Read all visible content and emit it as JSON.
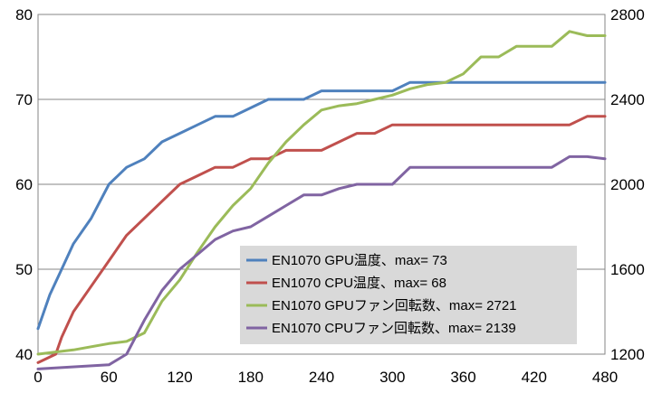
{
  "chart_data": {
    "type": "line",
    "title": "",
    "xlabel": "",
    "ylabel": "",
    "y2label": "",
    "xlim": [
      0,
      480
    ],
    "ylim": [
      40,
      80
    ],
    "y2lim": [
      1200,
      2800
    ],
    "xticks": [
      "0",
      "60",
      "120",
      "180",
      "240",
      "300",
      "360",
      "420",
      "480"
    ],
    "yticks": [
      "40",
      "50",
      "60",
      "70",
      "80"
    ],
    "y2ticks": [
      "1200",
      "1600",
      "2000",
      "2400",
      "2800"
    ],
    "grid": "horizontal",
    "legend_position": "bottom-right",
    "legend_background": "#d9d9d9",
    "series": [
      {
        "name": "EN1070 GPU温度、max= 73",
        "axis": "left",
        "color": "#4f81bd",
        "x": [
          0,
          5,
          10,
          20,
          30,
          45,
          60,
          75,
          90,
          105,
          120,
          135,
          150,
          165,
          180,
          195,
          210,
          225,
          240,
          255,
          270,
          285,
          300,
          315,
          330,
          345,
          360,
          375,
          390,
          405,
          420,
          435,
          450,
          465,
          480
        ],
        "y": [
          43,
          45,
          47,
          50,
          53,
          56,
          60,
          62,
          63,
          65,
          66,
          67,
          68,
          68,
          69,
          70,
          70,
          70,
          71,
          71,
          71,
          71,
          71,
          72,
          72,
          72,
          72,
          72,
          72,
          72,
          72,
          72,
          72,
          72,
          72
        ]
      },
      {
        "name": "EN1070 CPU温度、max= 68",
        "axis": "left",
        "color": "#c0504d",
        "x": [
          0,
          15,
          20,
          30,
          45,
          60,
          75,
          90,
          105,
          120,
          135,
          150,
          165,
          180,
          195,
          210,
          225,
          240,
          255,
          270,
          285,
          300,
          315,
          330,
          345,
          360,
          375,
          390,
          405,
          420,
          435,
          450,
          465,
          480
        ],
        "y": [
          39,
          40,
          42,
          45,
          48,
          51,
          54,
          56,
          58,
          60,
          61,
          62,
          62,
          63,
          63,
          64,
          64,
          64,
          65,
          66,
          66,
          67,
          67,
          67,
          67,
          67,
          67,
          67,
          67,
          67,
          67,
          67,
          68,
          68
        ]
      },
      {
        "name": "EN1070 GPUファン回転数、max= 2721",
        "axis": "right",
        "color": "#9bbb59",
        "x": [
          0,
          30,
          60,
          75,
          90,
          105,
          120,
          135,
          150,
          165,
          180,
          195,
          210,
          225,
          240,
          255,
          270,
          285,
          300,
          315,
          330,
          345,
          360,
          375,
          390,
          405,
          420,
          435,
          450,
          465,
          480
        ],
        "y": [
          1200,
          1220,
          1250,
          1260,
          1300,
          1450,
          1550,
          1680,
          1800,
          1900,
          1980,
          2100,
          2200,
          2280,
          2350,
          2370,
          2380,
          2400,
          2420,
          2450,
          2470,
          2480,
          2520,
          2600,
          2600,
          2650,
          2650,
          2650,
          2720,
          2700,
          2700
        ]
      },
      {
        "name": "EN1070 CPUファン回転数、max= 2139",
        "axis": "right",
        "color": "#8064a2",
        "x": [
          0,
          60,
          75,
          90,
          105,
          120,
          135,
          150,
          165,
          180,
          195,
          210,
          225,
          240,
          255,
          270,
          285,
          300,
          315,
          330,
          345,
          360,
          375,
          390,
          405,
          420,
          435,
          450,
          465,
          480
        ],
        "y": [
          1130,
          1150,
          1200,
          1360,
          1500,
          1600,
          1670,
          1740,
          1780,
          1800,
          1850,
          1900,
          1950,
          1950,
          1980,
          2000,
          2000,
          2000,
          2080,
          2080,
          2080,
          2080,
          2080,
          2080,
          2080,
          2080,
          2080,
          2130,
          2130,
          2120
        ]
      }
    ]
  }
}
